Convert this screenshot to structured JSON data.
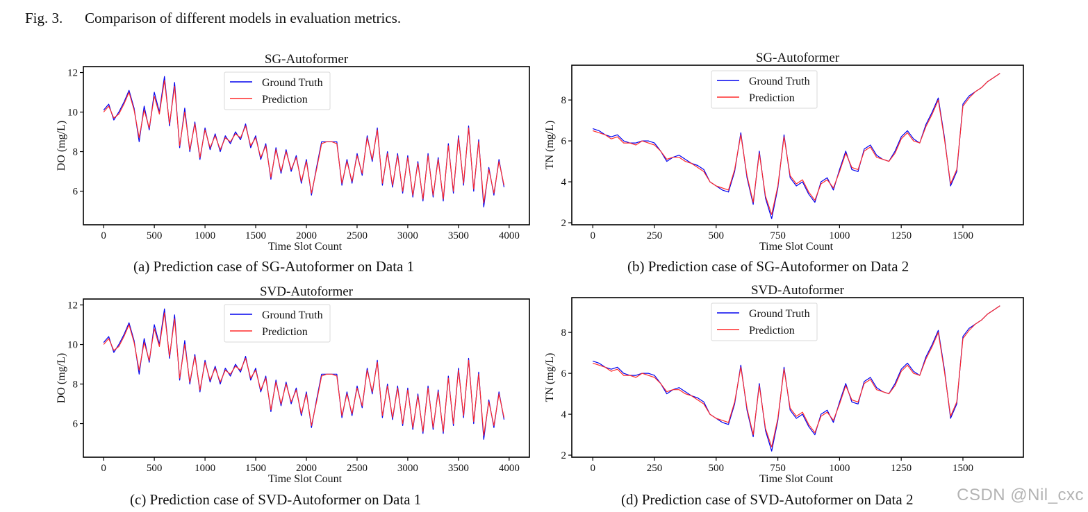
{
  "figure": {
    "label": "Fig. 3.",
    "caption": "Comparison of different models in evaluation metrics."
  },
  "watermark": "CSDN @Nil_cxc",
  "chart_data": [
    {
      "id": "a",
      "type": "line",
      "title": "SG-Autoformer",
      "subcaption": "(a) Prediction case of SG-Autoformer on Data 1",
      "xlabel": "Time Slot Count",
      "ylabel": "DO (mg/L)",
      "xlim": [
        -200,
        4200
      ],
      "ylim": [
        4.3,
        12.3
      ],
      "xticks": [
        0,
        500,
        1000,
        1500,
        2000,
        2500,
        3000,
        3500,
        4000
      ],
      "yticks": [
        6,
        8,
        10,
        12
      ],
      "legend": "top-center",
      "dataset": "do",
      "series": [
        {
          "name": "Ground Truth",
          "color": "#0000ee"
        },
        {
          "name": "Prediction",
          "color": "#ff2a2a"
        }
      ]
    },
    {
      "id": "b",
      "type": "line",
      "title": "SG-Autoformer",
      "subcaption": "(b) Prediction case of SG-Autoformer on Data 2",
      "xlabel": "Time Slot Count",
      "ylabel": "TN (mg/L)",
      "xlim": [
        -85,
        1745
      ],
      "ylim": [
        1.9,
        9.7
      ],
      "xticks": [
        0,
        250,
        500,
        750,
        1000,
        1250,
        1500
      ],
      "yticks": [
        2,
        4,
        6,
        8
      ],
      "legend": "top-center",
      "dataset": "tn",
      "series": [
        {
          "name": "Ground Truth",
          "color": "#0000ee"
        },
        {
          "name": "Prediction",
          "color": "#ff2a2a"
        }
      ]
    },
    {
      "id": "c",
      "type": "line",
      "title": "SVD-Autoformer",
      "subcaption": "(c) Prediction case of SVD-Autoformer on Data 1",
      "xlabel": "Time Slot Count",
      "ylabel": "DO (mg/L)",
      "xlim": [
        -200,
        4200
      ],
      "ylim": [
        4.3,
        12.3
      ],
      "xticks": [
        0,
        500,
        1000,
        1500,
        2000,
        2500,
        3000,
        3500,
        4000
      ],
      "yticks": [
        6,
        8,
        10,
        12
      ],
      "legend": "top-center",
      "dataset": "do",
      "series": [
        {
          "name": "Ground Truth",
          "color": "#0000ee"
        },
        {
          "name": "Prediction",
          "color": "#ff2a2a"
        }
      ]
    },
    {
      "id": "d",
      "type": "line",
      "title": "SVD-Autoformer",
      "subcaption": "(d) Prediction case of SVD-Autoformer on Data 2",
      "xlabel": "Time Slot Count",
      "ylabel": "TN (mg/L)",
      "xlim": [
        -85,
        1745
      ],
      "ylim": [
        1.9,
        9.7
      ],
      "xticks": [
        0,
        250,
        500,
        750,
        1000,
        1250,
        1500
      ],
      "yticks": [
        2,
        4,
        6,
        8
      ],
      "legend": "top-center",
      "dataset": "tn",
      "series": [
        {
          "name": "Ground Truth",
          "color": "#0000ee"
        },
        {
          "name": "Prediction",
          "color": "#ff2a2a"
        }
      ]
    }
  ],
  "series_values": {
    "do": {
      "x": [
        0,
        50,
        100,
        150,
        200,
        250,
        300,
        350,
        400,
        450,
        500,
        550,
        600,
        650,
        700,
        750,
        800,
        850,
        900,
        950,
        1000,
        1050,
        1100,
        1150,
        1200,
        1250,
        1300,
        1350,
        1400,
        1450,
        1500,
        1550,
        1600,
        1650,
        1700,
        1750,
        1800,
        1850,
        1900,
        1950,
        2000,
        2050,
        2100,
        2150,
        2200,
        2250,
        2300,
        2350,
        2400,
        2450,
        2500,
        2550,
        2600,
        2650,
        2700,
        2750,
        2800,
        2850,
        2900,
        2950,
        3000,
        3050,
        3100,
        3150,
        3200,
        3250,
        3300,
        3350,
        3400,
        3450,
        3500,
        3550,
        3600,
        3650,
        3700,
        3750,
        3800,
        3850,
        3900,
        3950
      ],
      "ground_truth": [
        10.1,
        10.4,
        9.6,
        10.0,
        10.5,
        11.1,
        10.2,
        8.5,
        10.3,
        9.1,
        11.0,
        10.0,
        11.8,
        9.3,
        11.5,
        8.2,
        10.2,
        8.0,
        9.5,
        7.6,
        9.2,
        8.1,
        8.9,
        8.0,
        8.8,
        8.4,
        9.0,
        8.6,
        9.4,
        8.2,
        8.8,
        7.6,
        8.4,
        6.6,
        8.2,
        6.9,
        8.1,
        7.0,
        7.8,
        6.4,
        7.6,
        5.8,
        7.2,
        8.5,
        8.5,
        8.5,
        8.5,
        6.3,
        7.6,
        6.4,
        7.9,
        6.8,
        8.8,
        7.5,
        9.2,
        6.3,
        8.0,
        6.2,
        7.9,
        5.9,
        7.8,
        5.7,
        7.5,
        5.5,
        7.9,
        5.7,
        7.7,
        5.5,
        8.4,
        5.9,
        8.8,
        6.3,
        9.3,
        6.0,
        8.6,
        5.2,
        7.2,
        5.8,
        7.6,
        6.2
      ],
      "prediction": [
        10.0,
        10.3,
        9.7,
        9.9,
        10.4,
        11.0,
        10.1,
        8.7,
        10.1,
        9.2,
        10.8,
        9.9,
        11.6,
        9.4,
        11.3,
        8.3,
        10.0,
        8.1,
        9.4,
        7.7,
        9.1,
        8.2,
        8.8,
        8.1,
        8.7,
        8.5,
        8.9,
        8.7,
        9.3,
        8.3,
        8.7,
        7.7,
        8.3,
        6.7,
        8.1,
        7.0,
        8.0,
        7.1,
        7.7,
        6.5,
        7.5,
        5.9,
        7.1,
        8.4,
        8.5,
        8.5,
        8.4,
        6.4,
        7.5,
        6.5,
        7.8,
        6.9,
        8.7,
        7.6,
        9.1,
        6.4,
        7.9,
        6.3,
        7.8,
        6.0,
        7.7,
        5.8,
        7.4,
        5.6,
        7.8,
        5.8,
        7.6,
        5.6,
        8.3,
        6.0,
        8.7,
        6.4,
        9.2,
        6.1,
        8.5,
        5.4,
        7.1,
        5.9,
        7.5,
        6.3
      ]
    },
    "tn": {
      "x": [
        0,
        25,
        50,
        75,
        100,
        125,
        150,
        175,
        200,
        225,
        250,
        275,
        300,
        325,
        350,
        375,
        400,
        425,
        450,
        475,
        500,
        525,
        550,
        575,
        600,
        625,
        650,
        675,
        700,
        725,
        750,
        775,
        800,
        825,
        850,
        875,
        900,
        925,
        950,
        975,
        1000,
        1025,
        1050,
        1075,
        1100,
        1125,
        1150,
        1175,
        1200,
        1225,
        1250,
        1275,
        1300,
        1325,
        1350,
        1375,
        1400,
        1425,
        1450,
        1475,
        1500,
        1525,
        1550,
        1575,
        1600,
        1625,
        1650
      ],
      "ground_truth": [
        6.6,
        6.5,
        6.3,
        6.2,
        6.3,
        6.0,
        5.9,
        5.9,
        6.0,
        6.0,
        5.9,
        5.5,
        5.0,
        5.2,
        5.3,
        5.1,
        4.9,
        4.8,
        4.6,
        4.0,
        3.8,
        3.6,
        3.5,
        4.5,
        6.4,
        4.2,
        2.9,
        5.5,
        3.2,
        2.2,
        3.7,
        6.3,
        4.2,
        3.8,
        4.0,
        3.4,
        3.0,
        4.0,
        4.2,
        3.6,
        4.6,
        5.5,
        4.6,
        4.5,
        5.6,
        5.8,
        5.3,
        5.1,
        5.0,
        5.5,
        6.2,
        6.5,
        6.1,
        5.9,
        6.8,
        7.4,
        8.1,
        6.2,
        3.8,
        4.5,
        7.8,
        8.2,
        8.4,
        8.6,
        8.9,
        9.1,
        9.3
      ],
      "prediction": [
        6.5,
        6.4,
        6.3,
        6.1,
        6.2,
        5.9,
        5.9,
        5.8,
        6.0,
        5.9,
        5.8,
        5.5,
        5.1,
        5.2,
        5.2,
        5.0,
        4.9,
        4.7,
        4.5,
        4.0,
        3.8,
        3.7,
        3.6,
        4.6,
        6.3,
        4.3,
        3.0,
        5.4,
        3.3,
        2.4,
        3.8,
        6.2,
        4.3,
        3.9,
        4.1,
        3.5,
        3.1,
        3.9,
        4.1,
        3.7,
        4.5,
        5.4,
        4.7,
        4.6,
        5.5,
        5.7,
        5.2,
        5.1,
        5.0,
        5.4,
        6.1,
        6.4,
        6.0,
        5.9,
        6.7,
        7.3,
        8.0,
        6.1,
        3.9,
        4.6,
        7.7,
        8.1,
        8.4,
        8.6,
        8.9,
        9.1,
        9.3
      ]
    }
  }
}
